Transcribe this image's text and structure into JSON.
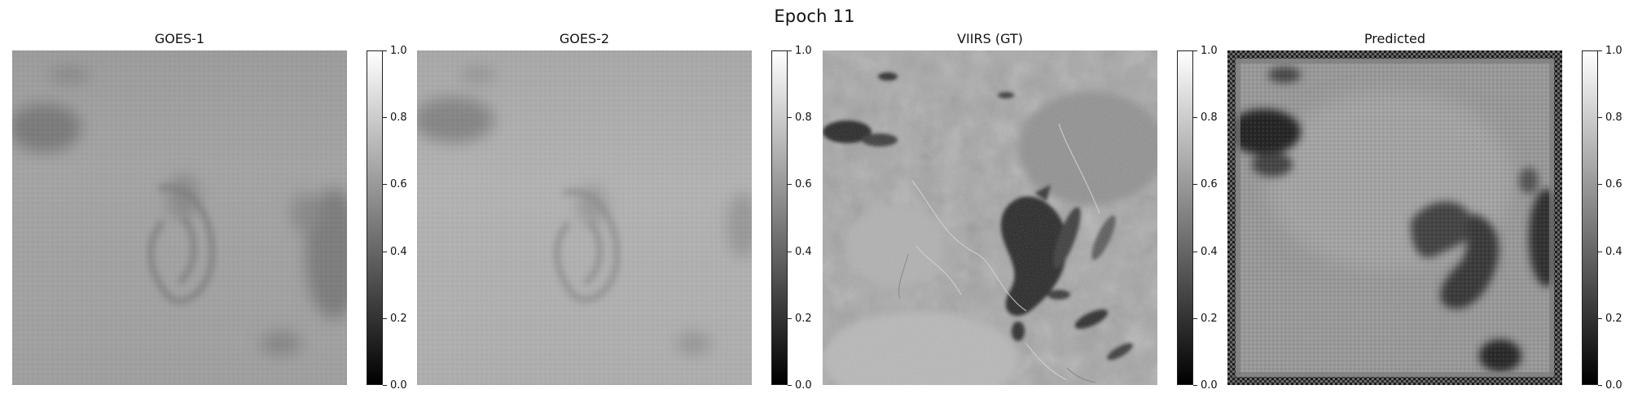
{
  "figure": {
    "title": "Epoch 11"
  },
  "panels": [
    {
      "title": "GOES-1",
      "image": "goes-1-satellite-image"
    },
    {
      "title": "GOES-2",
      "image": "goes-2-satellite-image"
    },
    {
      "title": "VIIRS (GT)",
      "image": "viirs-ground-truth-satellite-image"
    },
    {
      "title": "Predicted",
      "image": "predicted-satellite-image"
    }
  ],
  "colorbar": {
    "ticks": [
      "0.0",
      "0.2",
      "0.4",
      "0.6",
      "0.8",
      "1.0"
    ],
    "range": [
      0.0,
      1.0
    ],
    "colormap": "gray",
    "low_color": "#000000",
    "high_color": "#ffffff"
  }
}
